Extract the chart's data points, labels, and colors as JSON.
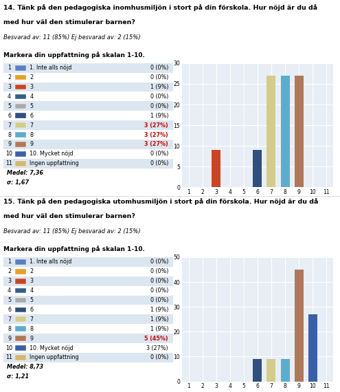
{
  "q14": {
    "title_line1": "14. Tänk på den pedagogiska inomhusmiljön i stort på din förskola. Hur nöjd är du då",
    "title_line2": "med hur väl den stimulerar barnen?",
    "subtitle": "Besvarad av: 11 (85%) Ej besvarad av: 2 (15%)",
    "instruction": "Markera din uppfattning på skalan 1-10.",
    "labels": [
      "1. Inte alls nöjd",
      "2",
      "3",
      "4",
      "5",
      "6",
      "7",
      "8",
      "9",
      "10. Mycket nöjd",
      "Ingen uppfattning"
    ],
    "values": [
      0,
      0,
      9,
      0,
      0,
      9,
      27,
      27,
      27,
      0,
      0
    ],
    "pcts": [
      "0 (0%)",
      "0 (0%)",
      "1 (9%)",
      "0 (0%)",
      "0 (0%)",
      "1 (9%)",
      "3 (27%)",
      "3 (27%)",
      "3 (27%)",
      "0 (0%)",
      "0 (0%)"
    ],
    "highlighted": [
      6,
      7,
      8
    ],
    "medel": "7,36",
    "sigma": "1,67",
    "bar_colors": [
      "#5b7fc4",
      "#e8a020",
      "#cc4422",
      "#2f5f8a",
      "#aaaaaa",
      "#2f4f7f",
      "#d4cc88",
      "#5aaecc",
      "#b07858",
      "#3a5faa",
      "#d4b86a"
    ],
    "ylim": 30,
    "yticks": [
      0,
      5,
      10,
      15,
      20,
      25,
      30
    ]
  },
  "q15": {
    "title_line1": "15. Tänk på den pedagogiska utomhusmiljön i stort på din förskola. Hur nöjd är du då",
    "title_line2": "med hur väl den stimulerar barnen?",
    "subtitle": "Besvarad av: 11 (85%) Ej besvarad av: 2 (15%)",
    "instruction": "Markera din uppfattning på skalan 1-10.",
    "labels": [
      "1. Inte alls nöjd",
      "2",
      "3",
      "4",
      "5",
      "6",
      "7",
      "8",
      "9",
      "10. Mycket nöjd",
      "Ingen uppfattning"
    ],
    "values": [
      0,
      0,
      0,
      0,
      0,
      9,
      9,
      9,
      45,
      27,
      0
    ],
    "pcts": [
      "0 (0%)",
      "0 (0%)",
      "0 (0%)",
      "0 (0%)",
      "0 (0%)",
      "1 (9%)",
      "1 (9%)",
      "1 (9%)",
      "5 (45%)",
      "3 (27%)",
      "0 (0%)"
    ],
    "highlighted": [
      8
    ],
    "medel": "8,73",
    "sigma": "1,21",
    "bar_colors": [
      "#5b7fc4",
      "#e8a020",
      "#cc4422",
      "#2f5f8a",
      "#aaaaaa",
      "#2f4f7f",
      "#d4cc88",
      "#5aaecc",
      "#b07858",
      "#3a5faa",
      "#d4b86a"
    ],
    "ylim": 50,
    "yticks": [
      0,
      10,
      20,
      30,
      40,
      50
    ]
  },
  "bg_color": "#e8eef5",
  "row_even_color": "#dce6f0",
  "row_odd_color": "#ffffff",
  "normal_text": "#000000",
  "highlight_text": "#cc0000",
  "fig_width": 4.95,
  "fig_height": 5.7,
  "dpi": 100
}
